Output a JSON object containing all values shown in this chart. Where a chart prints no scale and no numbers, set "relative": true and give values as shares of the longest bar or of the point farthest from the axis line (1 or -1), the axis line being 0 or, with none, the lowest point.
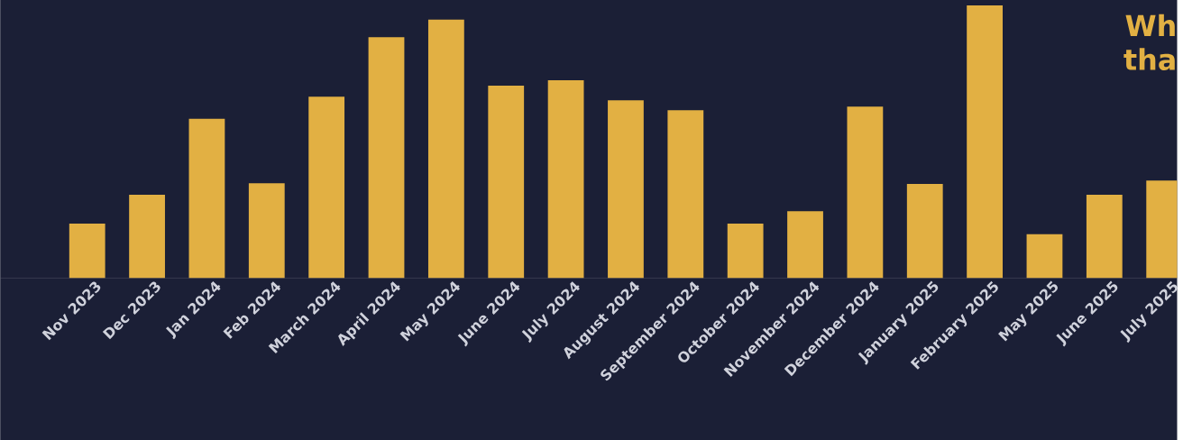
{
  "chart_data": {
    "type": "bar",
    "relative": true,
    "color": "#e2b043",
    "categories": [
      "Nov 2023",
      "Dec 2023",
      "Jan 2024",
      "Feb 2024",
      "March 2024",
      "April 2024",
      "May 2024",
      "June 2024",
      "July 2024",
      "August 2024",
      "September 2024",
      "October 2024",
      "November 2024",
      "December 2024",
      "January 2025",
      "February 2025",
      "May 2025",
      "June 2025",
      "July 2025"
    ],
    "values": [
      0.2,
      0.306,
      0.584,
      0.348,
      0.665,
      0.884,
      0.948,
      0.706,
      0.726,
      0.652,
      0.616,
      0.2,
      0.245,
      0.629,
      0.345,
      1,
      0.161,
      0.306,
      0.358
    ],
    "annotations": [
      "Wh",
      "tha"
    ]
  }
}
